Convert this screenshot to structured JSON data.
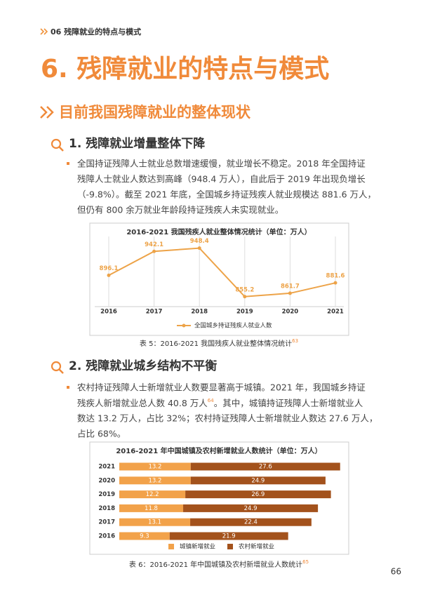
{
  "breadcrumb": "06 残障就业的特点与模式",
  "title": "6. 残障就业的特点与模式",
  "subtitle": "目前我国残障就业的整体现状",
  "sections": [
    {
      "heading": "1. 残障就业增量整体下降",
      "lines": [
        "全国持证残障人士就业总数增速缓慢，就业增长不稳定。2018 年全国持证",
        "残障人士就业人数达到高峰（948.4 万人），自此后于 2019 年出现负增长",
        "（-9.8%）。截至 2021 年底，全国城乡持证残疾人就业规模达 881.6 万人，",
        "但仍有 800 余万就业年龄段持证残疾人未实现就业。"
      ],
      "caption": "表 5：2016-2021 我国残疾人就业整体情况统计",
      "caption_note": "63"
    },
    {
      "heading": "2. 残障就业城乡结构不平衡",
      "lines": [
        "农村持证残障人士新增就业人数要显著高于城镇。2021 年，我国城乡持证",
        "残疾人新增就业总人数 40.8 万人",
        "。其中，城镇持证残障人士新增就业人",
        "数达 13.2 万人，占比 32%；农村持证残障人士新增就业人数达 27.6 万人，",
        "占比 68%。"
      ],
      "line_note": "64",
      "caption": "表 6：2016-2021 年中国城镇及农村新增就业人数统计",
      "caption_note": "65"
    }
  ],
  "page_number": "66",
  "chart_data": [
    {
      "type": "line",
      "title": "2016-2021 我国残疾人就业整体情况统计（单位：万人）",
      "categories": [
        "2016",
        "2017",
        "2018",
        "2019",
        "2020",
        "2021"
      ],
      "series": [
        {
          "name": "全国城乡持证残疾人就业人数",
          "color": "#eda348",
          "values": [
            896.1,
            942.1,
            948.4,
            855.2,
            861.7,
            881.6
          ]
        }
      ],
      "ylim": [
        836,
        960
      ]
    },
    {
      "type": "hbar_stacked",
      "title": "2016-2021 年中国城镇及农村新增就业人数统计（单位：万人）",
      "categories": [
        "2021",
        "2020",
        "2019",
        "2018",
        "2017",
        "2016"
      ],
      "series": [
        {
          "name": "城镇新增就业",
          "color": "#f2a24a",
          "values": [
            13.2,
            13.2,
            12.2,
            11.8,
            13.1,
            9.3
          ]
        },
        {
          "name": "农村新增就业",
          "color": "#a3521c",
          "values": [
            27.6,
            24.9,
            26.9,
            24.9,
            22.4,
            21.9
          ]
        }
      ],
      "xlim": [
        0,
        42
      ]
    }
  ]
}
